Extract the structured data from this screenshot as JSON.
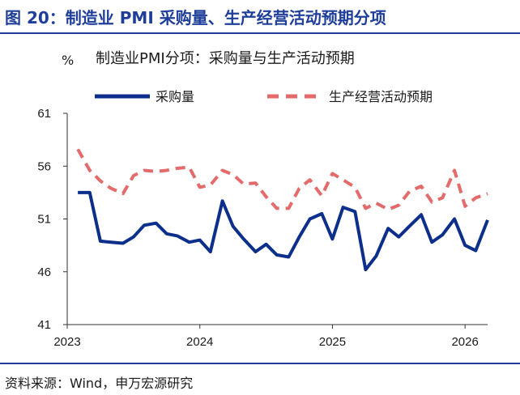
{
  "figure": {
    "title": "图 20：制造业 PMI 采购量、生产经营活动预期分项",
    "source": "资料来源：Wind，申万宏源研究"
  },
  "colors": {
    "brand": "#1f3e9a",
    "series_purchase": "#0d2f8c",
    "series_expectation": "#e36b6b"
  },
  "chart_data": {
    "type": "line",
    "title": "制造业PMI分项：采购量与生产活动预期",
    "ylabel": "%",
    "xlabel": "",
    "ylim": [
      41,
      61
    ],
    "yticks": [
      41,
      46,
      51,
      56,
      61
    ],
    "xlim": [
      2023.0,
      2026.17
    ],
    "xticks": [
      2023,
      2024,
      2025,
      2026
    ],
    "grid": false,
    "legend": "top",
    "x": [
      2023.08,
      2023.17,
      2023.25,
      2023.33,
      2023.42,
      2023.5,
      2023.58,
      2023.67,
      2023.75,
      2023.83,
      2023.92,
      2024.0,
      2024.08,
      2024.17,
      2024.25,
      2024.33,
      2024.42,
      2024.5,
      2024.58,
      2024.67,
      2024.75,
      2024.83,
      2024.92,
      2025.0,
      2025.08,
      2025.17,
      2025.25,
      2025.33,
      2025.42,
      2025.5,
      2025.58,
      2025.67,
      2025.75,
      2025.83,
      2025.92,
      2026.0,
      2026.08,
      2026.17
    ],
    "series": [
      {
        "name": "采购量",
        "style": "solid",
        "values": [
          53.5,
          53.5,
          48.9,
          48.8,
          48.7,
          49.3,
          50.4,
          50.6,
          49.6,
          49.4,
          48.8,
          49.0,
          47.9,
          52.7,
          50.3,
          49.1,
          47.9,
          48.6,
          47.6,
          47.4,
          49.3,
          51.0,
          51.5,
          49.1,
          52.1,
          51.7,
          46.2,
          47.5,
          50.1,
          49.3,
          50.3,
          51.4,
          48.8,
          49.5,
          51.0,
          48.5,
          48.0,
          50.9
        ]
      },
      {
        "name": "生产经营活动预期",
        "style": "dashed",
        "values": [
          57.6,
          55.6,
          54.6,
          53.9,
          53.4,
          55.1,
          55.6,
          55.5,
          55.6,
          55.8,
          55.9,
          54.0,
          54.2,
          55.6,
          55.2,
          54.3,
          54.4,
          53.1,
          52.0,
          52.0,
          53.9,
          54.7,
          53.2,
          55.3,
          54.7,
          54.0,
          52.0,
          52.5,
          51.9,
          52.3,
          53.6,
          54.1,
          52.6,
          53.0,
          55.6,
          52.2,
          53.0,
          53.4
        ]
      }
    ]
  }
}
